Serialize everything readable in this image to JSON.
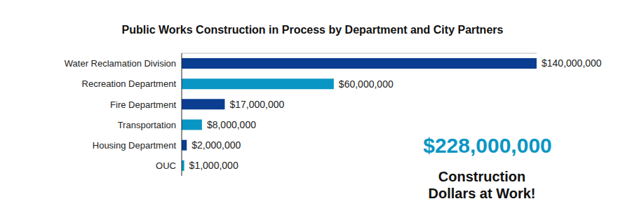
{
  "chart_data": {
    "type": "bar",
    "orientation": "horizontal",
    "title": "Public Works Construction in Process by Department and City Partners",
    "categories": [
      "Water Reclamation Division",
      "Recreation Department",
      "Fire Department",
      "Transportation",
      "Housing Department",
      "OUC"
    ],
    "values": [
      140000000,
      60000000,
      17000000,
      8000000,
      2000000,
      1000000
    ],
    "value_labels": [
      "$140,000,000",
      "$60,000,000",
      "$17,000,000",
      "$8,000,000",
      "$2,000,000",
      "$1,000,000"
    ],
    "colors": [
      "#0b3d91",
      "#0a96c4",
      "#0b3d91",
      "#0a96c4",
      "#0b3d91",
      "#0a96c4"
    ],
    "xlim": [
      0,
      140000000
    ],
    "data_labels": true,
    "tick_labels": "y",
    "grid": false,
    "annotations": [
      "$228,000,000",
      "Construction Dollars at Work!"
    ]
  }
}
